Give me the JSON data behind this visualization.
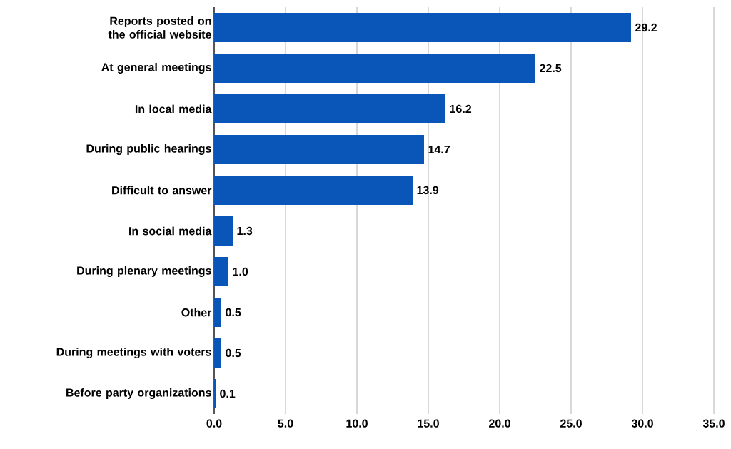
{
  "chart_data": {
    "type": "bar",
    "orientation": "horizontal",
    "categories": [
      "Reports posted on the official website",
      "At general meetings",
      "In local media",
      "During public hearings",
      "Difficult to answer",
      "In social media",
      "During plenary meetings",
      "Other",
      "During meetings with voters",
      "Before party organizations"
    ],
    "values": [
      29.2,
      22.5,
      16.2,
      14.7,
      13.9,
      1.3,
      1.0,
      0.5,
      0.5,
      0.1
    ],
    "value_labels": [
      "29.2",
      "22.5",
      "16.2",
      "14.7",
      "13.9",
      "1.3",
      "1.0",
      "0.5",
      "0.5",
      "0.1"
    ],
    "color": "#0a55b8",
    "xlim": [
      0,
      35
    ],
    "xticks": [
      {
        "value": 0,
        "label": "0.0"
      },
      {
        "value": 5,
        "label": "5.0"
      },
      {
        "value": 10,
        "label": "10.0"
      },
      {
        "value": 15,
        "label": "15.0"
      },
      {
        "value": 20,
        "label": "20.0"
      },
      {
        "value": 25,
        "label": "25.0"
      },
      {
        "value": 30,
        "label": "30.0"
      },
      {
        "value": 35,
        "label": "35.0"
      }
    ],
    "grid": "x"
  }
}
